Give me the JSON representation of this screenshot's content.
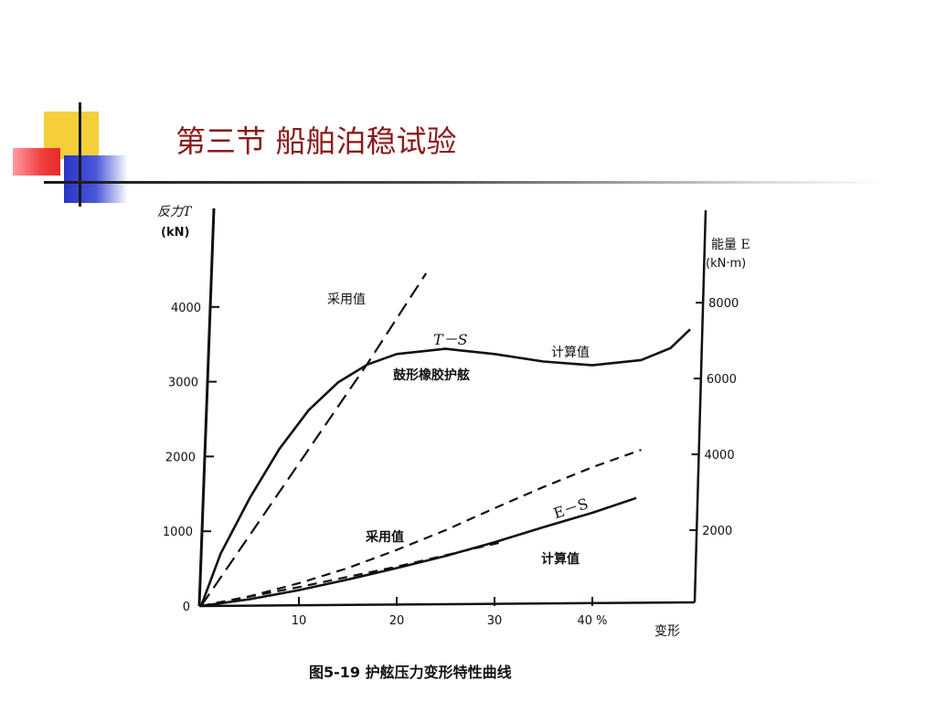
{
  "slide": {
    "title": "第三节 船舶泊稳试验",
    "caption": "图5-19   护舷压力变形特性曲线"
  },
  "chart_data": {
    "type": "line",
    "x_axis": {
      "label": "变形",
      "ticks": [
        10,
        20,
        30,
        40
      ],
      "tick_labels": [
        "10",
        "20",
        "30",
        "40 %"
      ],
      "range": [
        0,
        50
      ]
    },
    "y_left": {
      "label": [
        "反力T",
        "(kN)"
      ],
      "ticks": [
        0,
        1000,
        2000,
        3000,
        4000
      ],
      "tick_labels": [
        "0",
        "1000",
        "2000",
        "3000",
        "4000"
      ],
      "range": [
        0,
        5000
      ]
    },
    "y_right": {
      "label": [
        "能量 E",
        "(kN·m)"
      ],
      "ticks": [
        2000,
        4000,
        6000,
        8000
      ],
      "tick_labels": [
        "2000",
        "4000",
        "6000",
        "8000"
      ],
      "range": [
        0,
        10000
      ]
    },
    "annotations": {
      "ts_adopted": "采用值",
      "ts_curve": "T－S",
      "ts_calculated": "计算值",
      "fender": "鼓形橡胶护舷",
      "es_curve": "E－S",
      "es_adopted": "采用值",
      "es_calculated": "计算值"
    },
    "series": [
      {
        "style": "solid",
        "axis": "left",
        "x": [
          0,
          2,
          5,
          8,
          11,
          14,
          17,
          20,
          25,
          30,
          35,
          40,
          45,
          48,
          50
        ],
        "y": [
          0,
          700,
          1450,
          2100,
          2620,
          2990,
          3230,
          3370,
          3440,
          3370,
          3270,
          3220,
          3290,
          3450,
          3700
        ]
      },
      {
        "style": "dashed",
        "axis": "left",
        "x": [
          0,
          17,
          23
        ],
        "y": [
          0,
          3240,
          4450
        ]
      },
      {
        "style": "dashed",
        "axis": "right",
        "x": [
          0,
          5,
          10,
          15,
          20,
          25,
          30,
          35,
          40,
          45
        ],
        "y": [
          0,
          260,
          600,
          1000,
          1480,
          2000,
          2580,
          3140,
          3660,
          4120
        ]
      },
      {
        "style": "solid",
        "axis": "right",
        "x": [
          0,
          5,
          10,
          15,
          20,
          25,
          30,
          35,
          40,
          44.5
        ],
        "y": [
          0,
          180,
          420,
          700,
          1000,
          1320,
          1680,
          2080,
          2460,
          2850
        ]
      },
      {
        "style": "dashed",
        "axis": "right",
        "x": [
          0,
          10,
          20,
          26,
          31
        ],
        "y": [
          0,
          500,
          1040,
          1400,
          1700
        ]
      }
    ],
    "grid": false
  }
}
